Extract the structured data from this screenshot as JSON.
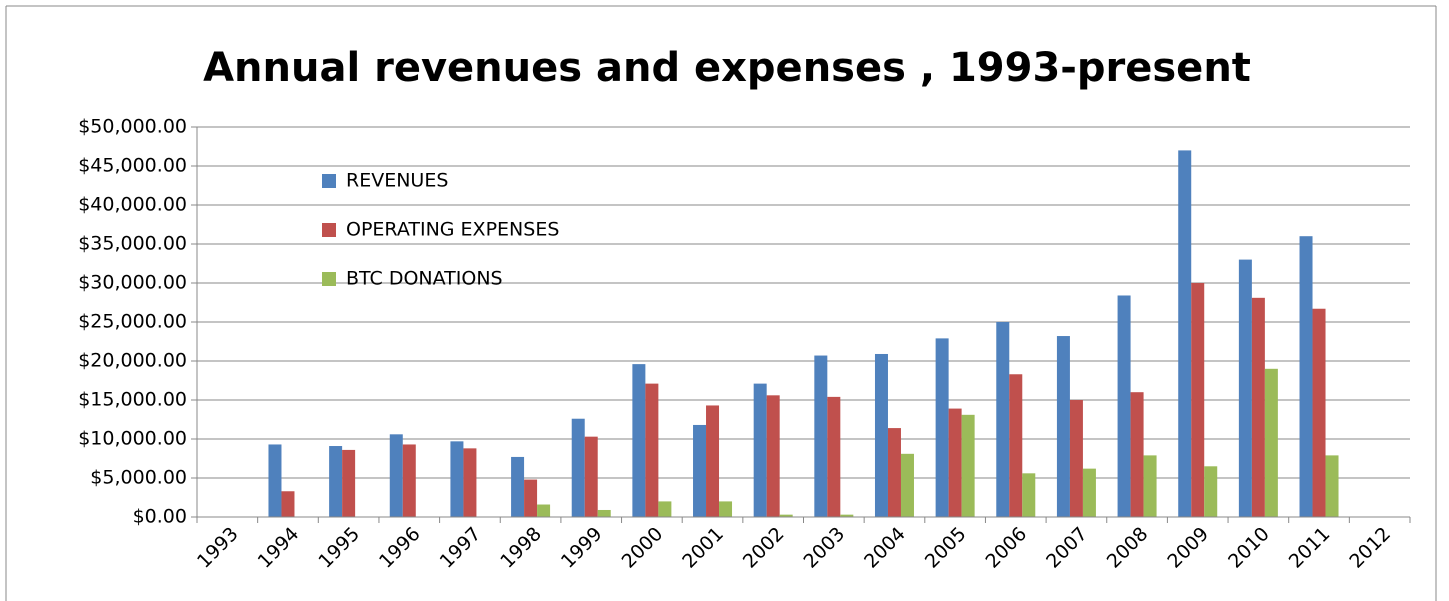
{
  "chart_data": {
    "type": "bar",
    "title": "Annual revenues and expenses , 1993-present",
    "categories": [
      "1993",
      "1994",
      "1995",
      "1996",
      "1997",
      "1998",
      "1999",
      "2000",
      "2001",
      "2002",
      "2003",
      "2004",
      "2005",
      "2006",
      "2007",
      "2008",
      "2009",
      "2010",
      "2011",
      "2012"
    ],
    "series": [
      {
        "name": "REVENUES",
        "color": "#4f81bd",
        "values": [
          null,
          9300,
          9100,
          10600,
          9700,
          7700,
          12600,
          19600,
          11800,
          17100,
          20700,
          20900,
          22900,
          25000,
          23200,
          28400,
          47000,
          33000,
          36000,
          null
        ]
      },
      {
        "name": "OPERATING EXPENSES",
        "color": "#c0504d",
        "values": [
          null,
          3300,
          8600,
          9300,
          8800,
          4800,
          10300,
          17100,
          14300,
          15600,
          15400,
          11400,
          13900,
          18300,
          15000,
          16000,
          30000,
          28100,
          26700,
          null
        ]
      },
      {
        "name": "BTC DONATIONS",
        "color": "#9bbb59",
        "values": [
          null,
          0,
          0,
          0,
          0,
          1600,
          900,
          2000,
          2000,
          300,
          300,
          8100,
          13100,
          5600,
          6200,
          7900,
          6500,
          19000,
          7900,
          null
        ]
      }
    ],
    "ylim": [
      0,
      50000
    ],
    "yticks": [
      {
        "value": 0,
        "label": "$0.00"
      },
      {
        "value": 5000,
        "label": "$5,000.00"
      },
      {
        "value": 10000,
        "label": "$10,000.00"
      },
      {
        "value": 15000,
        "label": "$15,000.00"
      },
      {
        "value": 20000,
        "label": "$20,000.00"
      },
      {
        "value": 25000,
        "label": "$25,000.00"
      },
      {
        "value": 30000,
        "label": "$30,000.00"
      },
      {
        "value": 35000,
        "label": "$35,000.00"
      },
      {
        "value": 40000,
        "label": "$40,000.00"
      },
      {
        "value": 45000,
        "label": "$45,000.00"
      },
      {
        "value": 50000,
        "label": "$50,000.00"
      }
    ],
    "grid": true,
    "legend": "upper left"
  }
}
